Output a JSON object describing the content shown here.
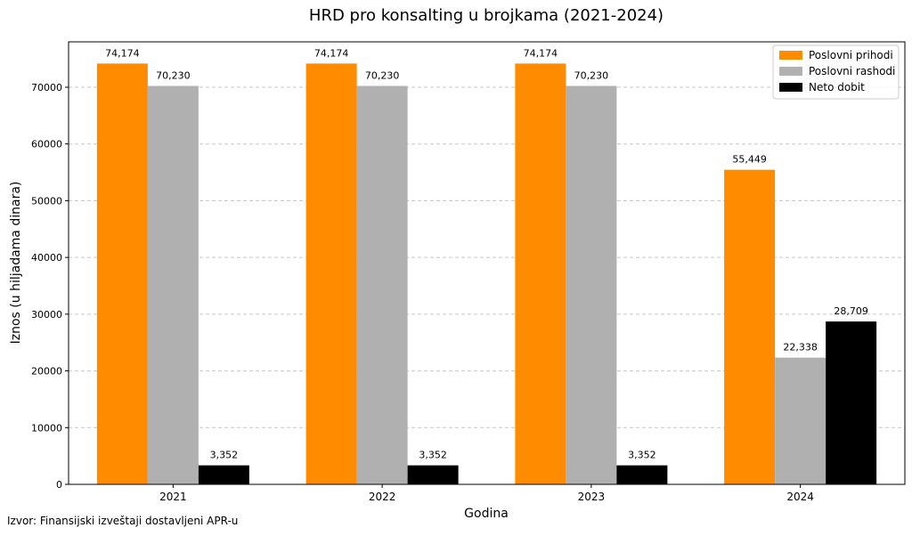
{
  "chart_data": {
    "type": "bar",
    "title": "HRD pro konsalting u brojkama (2021-2024)",
    "xlabel": "Godina",
    "ylabel": "Iznos (u hiljadama dinara)",
    "categories": [
      "2021",
      "2022",
      "2023",
      "2024"
    ],
    "ylim": [
      0,
      78000
    ],
    "yticks": [
      "0",
      "10000",
      "20000",
      "30000",
      "40000",
      "50000",
      "60000",
      "70000"
    ],
    "grid": "y",
    "legend_position": "top-right",
    "series": [
      {
        "name": "Poslovni prihodi",
        "color": "#ff8c00",
        "values": [
          74174,
          74174,
          74174,
          55449
        ],
        "labels": [
          "74,174",
          "74,174",
          "74,174",
          "55,449"
        ]
      },
      {
        "name": "Poslovni rashodi",
        "color": "#b0b0b0",
        "values": [
          70230,
          70230,
          70230,
          22338
        ],
        "labels": [
          "70,230",
          "70,230",
          "70,230",
          "22,338"
        ]
      },
      {
        "name": "Neto dobit",
        "color": "#000000",
        "values": [
          3352,
          3352,
          3352,
          28709
        ],
        "labels": [
          "3,352",
          "3,352",
          "3,352",
          "28,709"
        ]
      }
    ]
  },
  "source_note": "Izvor: Finansijski izveštaji dostavljeni APR-u"
}
